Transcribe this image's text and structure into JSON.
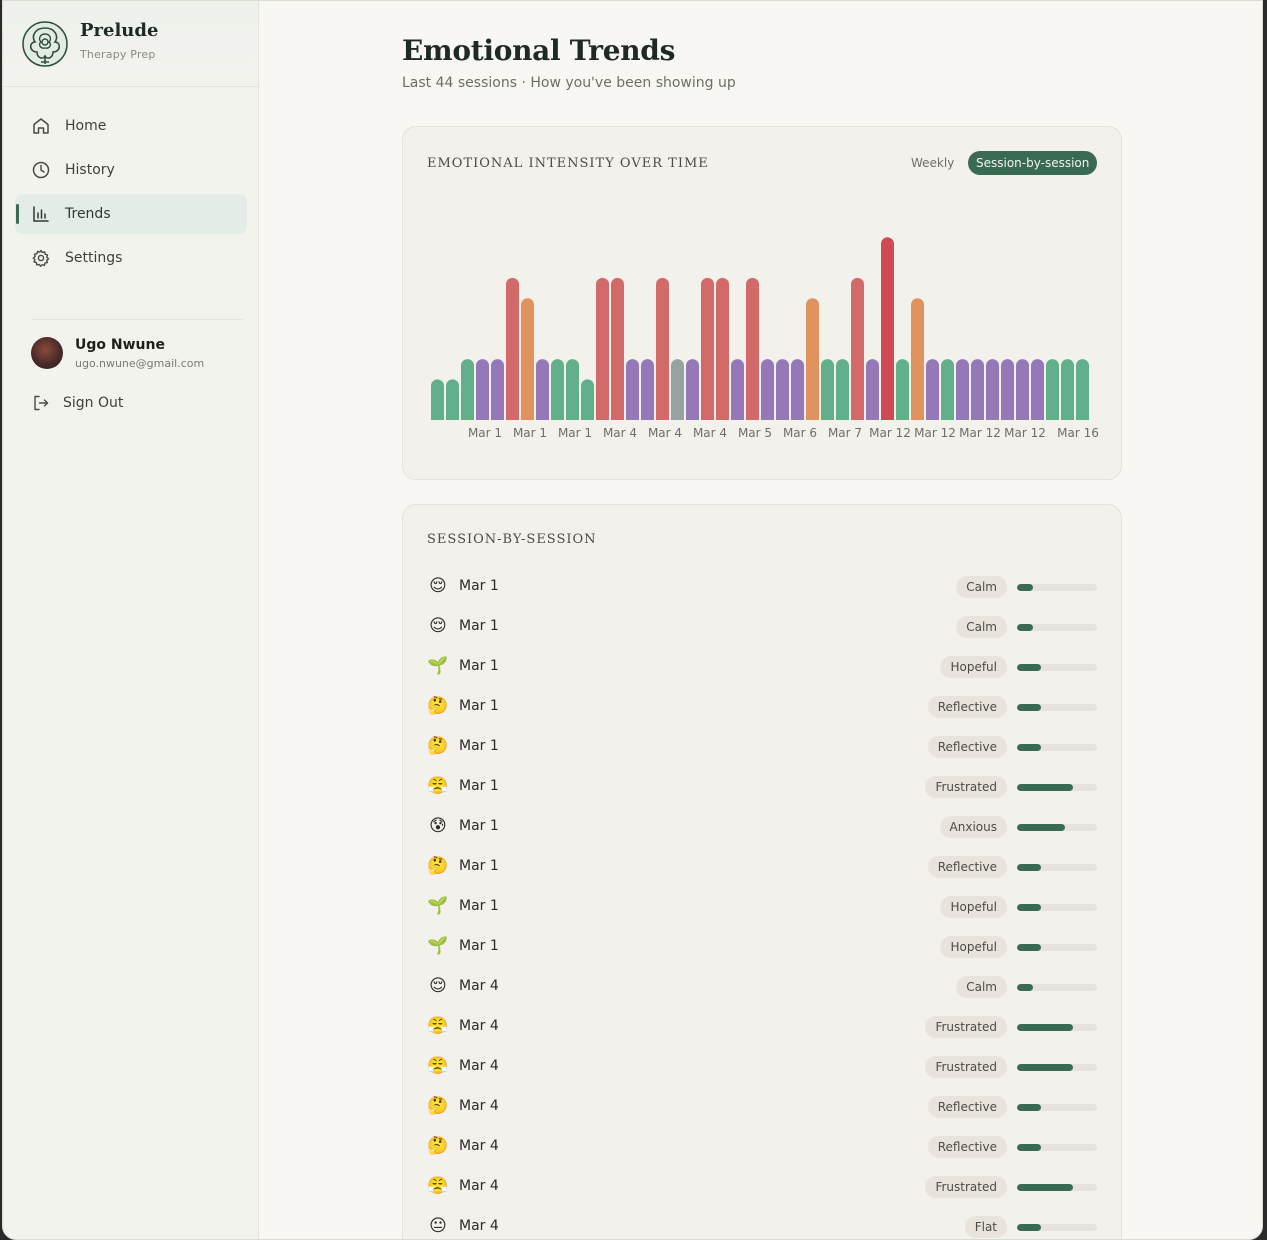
{
  "app": {
    "name": "Prelude",
    "subtitle": "Therapy Prep"
  },
  "sidebar": {
    "items": [
      {
        "label": "Home",
        "icon": "home-icon",
        "active": false
      },
      {
        "label": "History",
        "icon": "clock-icon",
        "active": false
      },
      {
        "label": "Trends",
        "icon": "bar-chart-icon",
        "active": true
      },
      {
        "label": "Settings",
        "icon": "gear-icon",
        "active": false
      }
    ],
    "user": {
      "name": "Ugo Nwune",
      "email": "ugo.nwune@gmail.com"
    },
    "signout_label": "Sign Out"
  },
  "page": {
    "title": "Emotional Trends",
    "subtitle": "Last 44 sessions · How you've been showing up"
  },
  "colors": {
    "accent": "#3b6a52",
    "calm": "#62b08a",
    "reflective": "#9478b8",
    "hopeful": "#62b08a",
    "frustrated": "#d26a6a",
    "anxious": "#e0935e",
    "flat": "#97a3a0",
    "angry": "#cf4a52"
  },
  "chart_card": {
    "title": "EMOTIONAL INTENSITY OVER TIME",
    "toggle_weekly": "Weekly",
    "toggle_session": "Session-by-session"
  },
  "chart_data": {
    "type": "bar",
    "title": "EMOTIONAL INTENSITY OVER TIME",
    "xlabel": "",
    "ylabel": "",
    "ylim": [
      0,
      10
    ],
    "x_tick_labels": [
      "Mar 1",
      "Mar 1",
      "Mar 1",
      "Mar 4",
      "Mar 4",
      "Mar 4",
      "Mar 5",
      "Mar 6",
      "Mar 7",
      "Mar 12",
      "Mar 12",
      "Mar 12",
      "Mar 12",
      "Mar 16"
    ],
    "values": [
      2,
      2,
      3,
      3,
      3,
      7,
      6,
      3,
      3,
      3,
      2,
      7,
      7,
      3,
      3,
      7,
      3,
      3,
      7,
      7,
      3,
      7,
      3,
      3,
      3,
      6,
      3,
      3,
      7,
      3,
      9,
      3,
      6,
      3,
      3,
      3,
      3,
      3,
      3,
      3,
      3,
      3,
      3,
      3
    ],
    "emotions": [
      "calm",
      "calm",
      "hopeful",
      "reflective",
      "reflective",
      "frustrated",
      "anxious",
      "reflective",
      "hopeful",
      "hopeful",
      "calm",
      "frustrated",
      "frustrated",
      "reflective",
      "reflective",
      "frustrated",
      "flat",
      "reflective",
      "frustrated",
      "frustrated",
      "reflective",
      "frustrated",
      "reflective",
      "reflective",
      "reflective",
      "anxious",
      "hopeful",
      "hopeful",
      "frustrated",
      "reflective",
      "angry",
      "hopeful",
      "anxious",
      "reflective",
      "hopeful",
      "reflective",
      "reflective",
      "reflective",
      "reflective",
      "reflective",
      "reflective",
      "hopeful",
      "hopeful",
      "hopeful"
    ]
  },
  "session_card": {
    "title": "SESSION-BY-SESSION",
    "rows": [
      {
        "emoji": "😌",
        "date": "Mar 1",
        "emotion": "Calm",
        "intensity": 0.2
      },
      {
        "emoji": "😌",
        "date": "Mar 1",
        "emotion": "Calm",
        "intensity": 0.2
      },
      {
        "emoji": "🌱",
        "date": "Mar 1",
        "emotion": "Hopeful",
        "intensity": 0.3
      },
      {
        "emoji": "🤔",
        "date": "Mar 1",
        "emotion": "Reflective",
        "intensity": 0.3
      },
      {
        "emoji": "🤔",
        "date": "Mar 1",
        "emotion": "Reflective",
        "intensity": 0.3
      },
      {
        "emoji": "😤",
        "date": "Mar 1",
        "emotion": "Frustrated",
        "intensity": 0.7
      },
      {
        "emoji": "😰",
        "date": "Mar 1",
        "emotion": "Anxious",
        "intensity": 0.6
      },
      {
        "emoji": "🤔",
        "date": "Mar 1",
        "emotion": "Reflective",
        "intensity": 0.3
      },
      {
        "emoji": "🌱",
        "date": "Mar 1",
        "emotion": "Hopeful",
        "intensity": 0.3
      },
      {
        "emoji": "🌱",
        "date": "Mar 1",
        "emotion": "Hopeful",
        "intensity": 0.3
      },
      {
        "emoji": "😌",
        "date": "Mar 4",
        "emotion": "Calm",
        "intensity": 0.2
      },
      {
        "emoji": "😤",
        "date": "Mar 4",
        "emotion": "Frustrated",
        "intensity": 0.7
      },
      {
        "emoji": "😤",
        "date": "Mar 4",
        "emotion": "Frustrated",
        "intensity": 0.7
      },
      {
        "emoji": "🤔",
        "date": "Mar 4",
        "emotion": "Reflective",
        "intensity": 0.3
      },
      {
        "emoji": "🤔",
        "date": "Mar 4",
        "emotion": "Reflective",
        "intensity": 0.3
      },
      {
        "emoji": "😤",
        "date": "Mar 4",
        "emotion": "Frustrated",
        "intensity": 0.7
      },
      {
        "emoji": "😐",
        "date": "Mar 4",
        "emotion": "Flat",
        "intensity": 0.3
      }
    ]
  }
}
